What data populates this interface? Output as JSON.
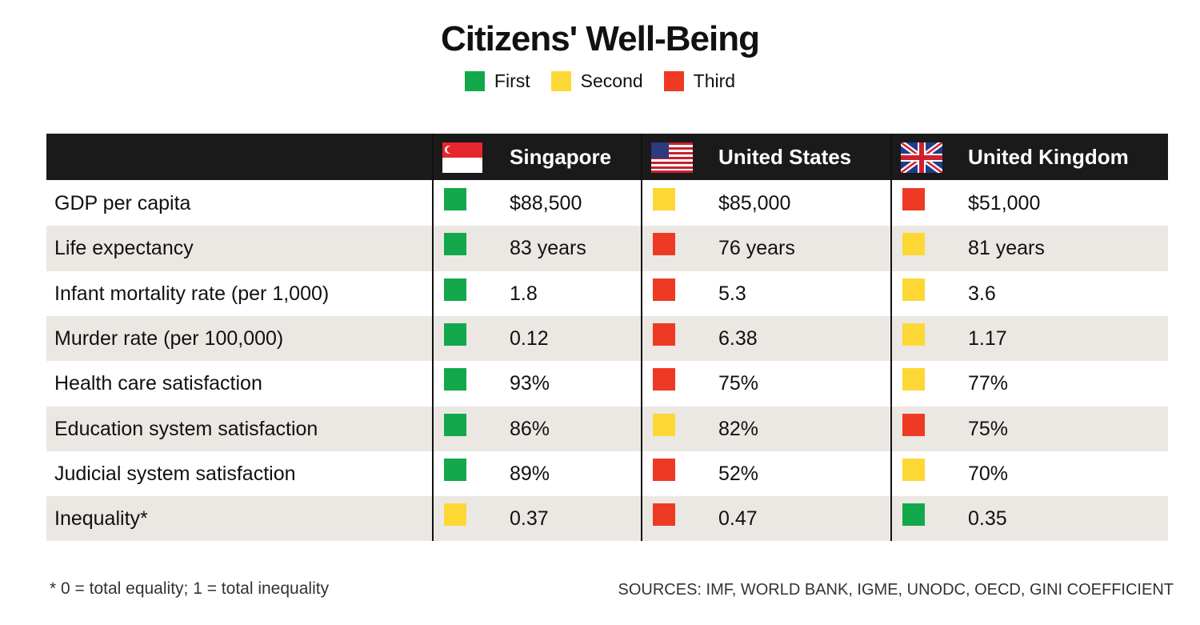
{
  "title": "Citizens' Well-Being",
  "legend": [
    {
      "name": "First",
      "color": "#13a84b"
    },
    {
      "name": "Second",
      "color": "#fdd835"
    },
    {
      "name": "Third",
      "color": "#ee3a24"
    }
  ],
  "table": {
    "columns": [
      "Singapore",
      "United States",
      "United Kingdom"
    ],
    "rows": [
      {
        "label": "GDP per capita",
        "cells": [
          {
            "rank": 1,
            "text": "$88,500"
          },
          {
            "rank": 2,
            "text": "$85,000"
          },
          {
            "rank": 3,
            "text": "$51,000"
          }
        ]
      },
      {
        "label": "Life expectancy",
        "cells": [
          {
            "rank": 1,
            "text": "83 years"
          },
          {
            "rank": 3,
            "text": "76 years"
          },
          {
            "rank": 2,
            "text": "81 years"
          }
        ]
      },
      {
        "label": "Infant mortality rate (per 1,000)",
        "cells": [
          {
            "rank": 1,
            "text": "1.8"
          },
          {
            "rank": 3,
            "text": "5.3"
          },
          {
            "rank": 2,
            "text": "3.6"
          }
        ]
      },
      {
        "label": "Murder rate (per 100,000)",
        "cells": [
          {
            "rank": 1,
            "text": "0.12"
          },
          {
            "rank": 3,
            "text": "6.38"
          },
          {
            "rank": 2,
            "text": "1.17"
          }
        ]
      },
      {
        "label": "Health care satisfaction",
        "cells": [
          {
            "rank": 1,
            "text": "93%"
          },
          {
            "rank": 3,
            "text": "75%"
          },
          {
            "rank": 2,
            "text": "77%"
          }
        ]
      },
      {
        "label": "Education system satisfaction",
        "cells": [
          {
            "rank": 1,
            "text": "86%"
          },
          {
            "rank": 2,
            "text": "82%"
          },
          {
            "rank": 3,
            "text": "75%"
          }
        ]
      },
      {
        "label": "Judicial system satisfaction",
        "cells": [
          {
            "rank": 1,
            "text": "89%"
          },
          {
            "rank": 3,
            "text": "52%"
          },
          {
            "rank": 2,
            "text": "70%"
          }
        ]
      },
      {
        "label": "Inequality*",
        "cells": [
          {
            "rank": 2,
            "text": "0.37"
          },
          {
            "rank": 3,
            "text": "0.47"
          },
          {
            "rank": 1,
            "text": "0.35"
          }
        ]
      }
    ]
  },
  "footnote": "* 0 = total equality; 1 = total inequality",
  "source": "SOURCES: IMF, WORLD BANK, IGME, UNODC, OECD, GINI COEFFICIENT"
}
